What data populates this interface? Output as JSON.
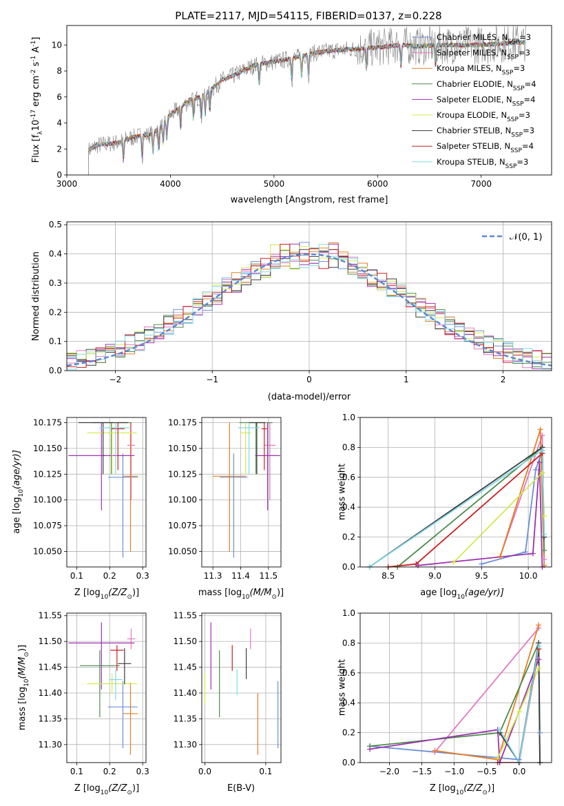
{
  "title": "PLATE=2117, MJD=54115, FIBERID=0137, z=0.228",
  "colors": {
    "Chabrier MILES": "#6b8fd6",
    "Salpeter MILES": "#e377c2",
    "Kroupa MILES": "#e67e22",
    "Chabrier ELODIE": "#4c8c4a",
    "Salpeter ELODIE": "#9b30b0",
    "Kroupa ELODIE": "#d4e84a",
    "Chabrier STELIB": "#3a3a3a",
    "Salpeter STELIB": "#c81e1e",
    "Kroupa STELIB": "#7fd8e8",
    "data": "#808080",
    "normal": "#5b87d4"
  },
  "chart_data": [
    {
      "id": "spectrum",
      "type": "line",
      "xlabel": "wavelength [Angstrom, rest frame]",
      "ylabel": "Flux [f",
      "ylabel_sub": "λ",
      "ylabel_rest": "10",
      "ylabel_exp": "-17",
      "ylabel_units": " erg cm",
      "ylabel_units_exp": "-2",
      "ylabel_units2": " s",
      "ylabel_units2_exp": "-1",
      "ylabel_units3": " A",
      "ylabel_units3_exp": "-1",
      "ylabel_end": "]",
      "xlim": [
        3000,
        7680
      ],
      "ylim": [
        0,
        11.5
      ],
      "xticks": [
        3000,
        4000,
        5000,
        6000,
        7000
      ],
      "yticks": [
        0,
        2,
        4,
        6,
        8,
        10
      ],
      "continuum": {
        "x": [
          3210,
          3300,
          3400,
          3500,
          3600,
          3700,
          3800,
          3900,
          4000,
          4100,
          4200,
          4300,
          4400,
          4500,
          4600,
          4700,
          4800,
          4900,
          5000,
          5200,
          5400,
          5600,
          5800,
          6000,
          6200,
          6400,
          6600,
          6800,
          7000,
          7200,
          7400
        ],
        "y": [
          1.9,
          2.3,
          2.4,
          2.5,
          2.8,
          3.0,
          3.1,
          3.6,
          4.6,
          5.2,
          5.8,
          6.0,
          6.6,
          7.3,
          7.6,
          8.0,
          8.4,
          8.6,
          8.7,
          9.0,
          9.4,
          9.6,
          9.7,
          9.8,
          10.0,
          9.9,
          10.0,
          10.0,
          10.0,
          10.1,
          10.2
        ]
      },
      "series": [
        {
          "name": "Chabrier MILES",
          "nssp": "3"
        },
        {
          "name": "Salpeter MILES",
          "nssp": "3"
        },
        {
          "name": "Kroupa MILES",
          "nssp": "3"
        },
        {
          "name": "Chabrier ELODIE",
          "nssp": "4"
        },
        {
          "name": "Salpeter ELODIE",
          "nssp": "4"
        },
        {
          "name": "Kroupa ELODIE",
          "nssp": "3"
        },
        {
          "name": "Chabrier STELIB",
          "nssp": "3"
        },
        {
          "name": "Salpeter STELIB",
          "nssp": "4"
        },
        {
          "name": "Kroupa STELIB",
          "nssp": "3"
        }
      ],
      "legend_nssp_label": "N",
      "legend_nssp_sub": "SSP"
    },
    {
      "id": "residuals",
      "type": "histogram",
      "xlabel": "(data-model)/error",
      "ylabel": "Normed distribution",
      "xlim": [
        -2.5,
        2.5
      ],
      "ylim": [
        0,
        0.51
      ],
      "xticks": [
        -2,
        -1,
        0,
        1,
        2
      ],
      "yticks": [
        0.0,
        0.1,
        0.2,
        0.3,
        0.4,
        0.5
      ],
      "bin_width": 0.1,
      "normal_label": "𝒩(0, 1)"
    },
    {
      "id": "age_vs_Z",
      "type": "errorbar",
      "xlabel": "Z [log",
      "xlabel_sub": "10",
      "xlabel_end": "(Z/Z",
      "xlabel_sun_sub": "⊙",
      "xlabel_close": ")]",
      "ylabel": "age  [log",
      "ylabel_sub": "10",
      "ylabel_end": "(age/yr)]",
      "xlim": [
        0.07,
        0.31
      ],
      "ylim": [
        10.035,
        10.18
      ],
      "xticks": [
        0.1,
        0.2,
        0.3
      ],
      "yticks": [
        10.05,
        10.075,
        10.1,
        10.125,
        10.15,
        10.175
      ],
      "points": [
        {
          "series": "Chabrier MILES",
          "x": 0.24,
          "xerr": 0.045,
          "y": 10.122,
          "yerr": [
            0.078,
            0.023
          ]
        },
        {
          "series": "Salpeter MILES",
          "x": 0.265,
          "xerr": 0.012,
          "y": 10.153,
          "yerr": [
            0.053,
            0.022
          ]
        },
        {
          "series": "Kroupa MILES",
          "x": 0.263,
          "xerr": 0.022,
          "y": 10.123,
          "yerr": [
            0.073,
            0.052
          ]
        },
        {
          "series": "Chabrier ELODIE",
          "x": 0.205,
          "xerr": 0.06,
          "y": 10.175,
          "yerr": [
            0.05,
            0.0
          ]
        },
        {
          "series": "Salpeter ELODIE",
          "x": 0.175,
          "xerr": 0.1,
          "y": 10.143,
          "yerr": [
            0.053,
            0.032
          ]
        },
        {
          "series": "Kroupa ELODIE",
          "x": 0.207,
          "xerr": 0.075,
          "y": 10.165,
          "yerr": [
            0.04,
            0.01
          ]
        },
        {
          "series": "Chabrier STELIB",
          "x": 0.18,
          "xerr": 0.075,
          "y": 10.175,
          "yerr": [
            0.05,
            0.0
          ]
        },
        {
          "series": "Salpeter STELIB",
          "x": 0.225,
          "xerr": 0.02,
          "y": 10.169,
          "yerr": [
            0.04,
            0.006
          ]
        },
        {
          "series": "Kroupa STELIB",
          "x": 0.218,
          "xerr": 0.05,
          "y": 10.17,
          "yerr": [
            0.045,
            0.005
          ]
        }
      ]
    },
    {
      "id": "age_vs_mass",
      "type": "errorbar",
      "xlabel": "mass [log",
      "xlabel_sub": "10",
      "xlabel_end": "(M/M",
      "xlabel_sun_sub": "⊙",
      "xlabel_close": ")]",
      "xlim": [
        11.26,
        11.545
      ],
      "ylim": [
        10.035,
        10.18
      ],
      "xticks": [
        11.3,
        11.4,
        11.5
      ],
      "yticks": [
        10.05,
        10.075,
        10.1,
        10.125,
        10.15,
        10.175
      ],
      "points": [
        {
          "series": "Chabrier MILES",
          "x": 11.375,
          "xerr": 0.05,
          "y": 10.122,
          "yerr": [
            0.078,
            0.023
          ]
        },
        {
          "series": "Salpeter MILES",
          "x": 11.505,
          "xerr": 0.02,
          "y": 10.153,
          "yerr": [
            0.053,
            0.022
          ]
        },
        {
          "series": "Kroupa MILES",
          "x": 11.36,
          "xerr": 0.06,
          "y": 10.123,
          "yerr": [
            0.073,
            0.052
          ]
        },
        {
          "series": "Chabrier ELODIE",
          "x": 11.455,
          "xerr": 0.06,
          "y": 10.175,
          "yerr": [
            0.05,
            0.0
          ]
        },
        {
          "series": "Salpeter ELODIE",
          "x": 11.497,
          "xerr": 0.045,
          "y": 10.143,
          "yerr": [
            0.053,
            0.032
          ]
        },
        {
          "series": "Kroupa ELODIE",
          "x": 11.418,
          "xerr": 0.02,
          "y": 10.165,
          "yerr": [
            0.04,
            0.01
          ]
        },
        {
          "series": "Chabrier STELIB",
          "x": 11.458,
          "xerr": 0.03,
          "y": 10.175,
          "yerr": [
            0.05,
            0.0
          ]
        },
        {
          "series": "Salpeter STELIB",
          "x": 11.485,
          "xerr": 0.01,
          "y": 10.169,
          "yerr": [
            0.04,
            0.006
          ]
        },
        {
          "series": "Kroupa STELIB",
          "x": 11.43,
          "xerr": 0.04,
          "y": 10.17,
          "yerr": [
            0.045,
            0.005
          ]
        }
      ]
    },
    {
      "id": "weight_vs_age",
      "type": "line",
      "xlabel": "age  [log",
      "xlabel_sub": "10",
      "xlabel_end": "(age/yr)]",
      "ylabel": "mass weight",
      "xlim": [
        8.2,
        10.25
      ],
      "ylim": [
        0,
        1.0
      ],
      "xticks": [
        8.5,
        9.0,
        9.5,
        10.0
      ],
      "yticks": [
        0.0,
        0.2,
        0.4,
        0.6,
        0.8,
        1.0
      ],
      "series": [
        {
          "name": "Chabrier MILES",
          "x": [
            9.5,
            9.97,
            10.08,
            10.15,
            10.17
          ],
          "y": [
            0.02,
            0.1,
            0.65,
            0.78,
            0.2
          ]
        },
        {
          "name": "Salpeter MILES",
          "x": [
            9.7,
            10.15,
            10.17
          ],
          "y": [
            0.07,
            0.88,
            0.05
          ]
        },
        {
          "name": "Kroupa MILES",
          "x": [
            9.7,
            10.13,
            10.17
          ],
          "y": [
            0.07,
            0.92,
            0.01
          ]
        },
        {
          "name": "Chabrier ELODIE",
          "x": [
            8.6,
            10.15,
            10.17
          ],
          "y": [
            0.0,
            0.8,
            0.11
          ]
        },
        {
          "name": "Salpeter ELODIE",
          "x": [
            8.82,
            10.05,
            10.12,
            10.15
          ],
          "y": [
            0.01,
            0.09,
            0.7,
            0.0
          ]
        },
        {
          "name": "Kroupa ELODIE",
          "x": [
            9.2,
            10.15,
            10.17
          ],
          "y": [
            0.03,
            0.63,
            0.34
          ]
        },
        {
          "name": "Chabrier STELIB",
          "x": [
            8.3,
            10.15,
            10.17
          ],
          "y": [
            0.0,
            0.8,
            0.2
          ]
        },
        {
          "name": "Salpeter STELIB",
          "x": [
            8.5,
            8.8,
            10.15
          ],
          "y": [
            0.0,
            0.02,
            0.76
          ]
        },
        {
          "name": "Kroupa STELIB",
          "x": [
            8.3,
            10.15,
            10.17
          ],
          "y": [
            0.0,
            0.78,
            0.22
          ]
        }
      ]
    },
    {
      "id": "mass_vs_Z",
      "type": "errorbar",
      "xlabel": "Z [log",
      "xlabel_sub": "10",
      "xlabel_end": "(Z/Z",
      "xlabel_sun_sub": "⊙",
      "xlabel_close": ")]",
      "ylabel": "mass [log",
      "ylabel_sub": "10",
      "ylabel_end": "(M/M",
      "ylabel_sun_sub": "⊙",
      "ylabel_close": ")]",
      "xlim": [
        0.07,
        0.31
      ],
      "ylim": [
        11.265,
        11.555
      ],
      "xticks": [
        0.1,
        0.2,
        0.3
      ],
      "yticks": [
        11.3,
        11.35,
        11.4,
        11.45,
        11.5,
        11.55
      ],
      "points": [
        {
          "series": "Chabrier MILES",
          "x": 0.24,
          "xerr": 0.045,
          "y": 11.373,
          "yerr": [
            0.08,
            0.05
          ]
        },
        {
          "series": "Salpeter MILES",
          "x": 0.265,
          "xerr": 0.012,
          "y": 11.505,
          "yerr": [
            0.02,
            0.02
          ]
        },
        {
          "series": "Kroupa MILES",
          "x": 0.263,
          "xerr": 0.022,
          "y": 11.36,
          "yerr": [
            0.08,
            0.06
          ]
        },
        {
          "series": "Chabrier ELODIE",
          "x": 0.17,
          "xerr": 0.06,
          "y": 11.453,
          "yerr": [
            0.1,
            0.03
          ]
        },
        {
          "series": "Salpeter ELODIE",
          "x": 0.175,
          "xerr": 0.1,
          "y": 11.497,
          "yerr": [
            0.09,
            0.04
          ]
        },
        {
          "series": "Kroupa ELODIE",
          "x": 0.207,
          "xerr": 0.075,
          "y": 11.418,
          "yerr": [
            0.02,
            0.02
          ]
        },
        {
          "series": "Chabrier STELIB",
          "x": 0.245,
          "xerr": 0.02,
          "y": 11.457,
          "yerr": [
            0.04,
            0.03
          ]
        },
        {
          "series": "Salpeter STELIB",
          "x": 0.222,
          "xerr": 0.02,
          "y": 11.483,
          "yerr": [
            0.04,
            0.01
          ]
        },
        {
          "series": "Kroupa STELIB",
          "x": 0.218,
          "xerr": 0.02,
          "y": 11.426,
          "yerr": [
            0.04,
            0.02
          ]
        }
      ]
    },
    {
      "id": "mass_vs_ebv",
      "type": "errorbar",
      "xlabel": "E(B-V)",
      "xlim": [
        -0.005,
        0.125
      ],
      "ylim": [
        11.265,
        11.555
      ],
      "xticks": [
        0.0,
        0.1
      ],
      "yticks": [
        11.3,
        11.35,
        11.4,
        11.45,
        11.5,
        11.55
      ],
      "points": [
        {
          "series": "Chabrier MILES",
          "x": 0.12,
          "y": 11.373,
          "yerr": [
            0.08,
            0.05
          ]
        },
        {
          "series": "Salpeter MILES",
          "x": 0.075,
          "y": 11.505,
          "yerr": [
            0.02,
            0.02
          ]
        },
        {
          "series": "Kroupa MILES",
          "x": 0.087,
          "y": 11.36,
          "yerr": [
            0.08,
            0.04
          ]
        },
        {
          "series": "Chabrier ELODIE",
          "x": 0.024,
          "y": 11.453,
          "yerr": [
            0.1,
            0.03
          ]
        },
        {
          "series": "Salpeter ELODIE",
          "x": 0.01,
          "y": 11.497,
          "yerr": [
            0.09,
            0.04
          ]
        },
        {
          "series": "Kroupa ELODIE",
          "x": 0.0,
          "y": 11.418,
          "yerr": [
            0.04,
            0.02
          ]
        },
        {
          "series": "Chabrier STELIB",
          "x": 0.068,
          "y": 11.457,
          "yerr": [
            0.03,
            0.03
          ]
        },
        {
          "series": "Salpeter STELIB",
          "x": 0.045,
          "y": 11.483,
          "yerr": [
            0.04,
            0.01
          ]
        },
        {
          "series": "Kroupa STELIB",
          "x": 0.053,
          "y": 11.426,
          "yerr": [
            0.03,
            0.02
          ]
        }
      ]
    },
    {
      "id": "weight_vs_Z",
      "type": "line",
      "xlabel": "Z [log",
      "xlabel_sub": "10",
      "xlabel_end": "(Z/Z",
      "xlabel_sun_sub": "⊙",
      "xlabel_close": ")]",
      "ylabel": "mass weight",
      "xlim": [
        -2.45,
        0.5
      ],
      "ylim": [
        0,
        1.0
      ],
      "xticks": [
        -2.0,
        -1.5,
        -1.0,
        -0.5,
        0.0
      ],
      "yticks": [
        0.0,
        0.2,
        0.4,
        0.6,
        0.8,
        1.0
      ],
      "series": [
        {
          "name": "Chabrier MILES",
          "x": [
            -2.3,
            0.0,
            0.3,
            0.32
          ],
          "y": [
            0.11,
            0.02,
            0.78,
            0.2
          ]
        },
        {
          "name": "Salpeter MILES",
          "x": [
            -1.3,
            0.3
          ],
          "y": [
            0.07,
            0.9
          ]
        },
        {
          "name": "Kroupa MILES",
          "x": [
            -1.3,
            -0.33,
            0.3
          ],
          "y": [
            0.08,
            0.02,
            0.92
          ]
        },
        {
          "name": "Chabrier ELODIE",
          "x": [
            -2.3,
            -0.3,
            0.3,
            0.32
          ],
          "y": [
            0.11,
            0.2,
            0.8,
            0.0
          ]
        },
        {
          "name": "Salpeter ELODIE",
          "x": [
            -2.3,
            -0.33,
            -0.3,
            0.3
          ],
          "y": [
            0.09,
            0.22,
            0.0,
            0.69
          ]
        },
        {
          "name": "Kroupa ELODIE",
          "x": [
            -0.33,
            0.0,
            0.3
          ],
          "y": [
            0.03,
            0.34,
            0.63
          ]
        },
        {
          "name": "Chabrier STELIB",
          "x": [
            -0.3,
            0.0,
            0.3,
            0.32
          ],
          "y": [
            0.2,
            0.0,
            0.8,
            0.0
          ]
        },
        {
          "name": "Salpeter STELIB",
          "x": [
            -0.33,
            0.0,
            0.3
          ],
          "y": [
            0.0,
            0.0,
            0.76
          ]
        },
        {
          "name": "Kroupa STELIB",
          "x": [
            -0.3,
            0.0,
            0.3
          ],
          "y": [
            0.22,
            0.0,
            0.78
          ]
        }
      ]
    }
  ]
}
